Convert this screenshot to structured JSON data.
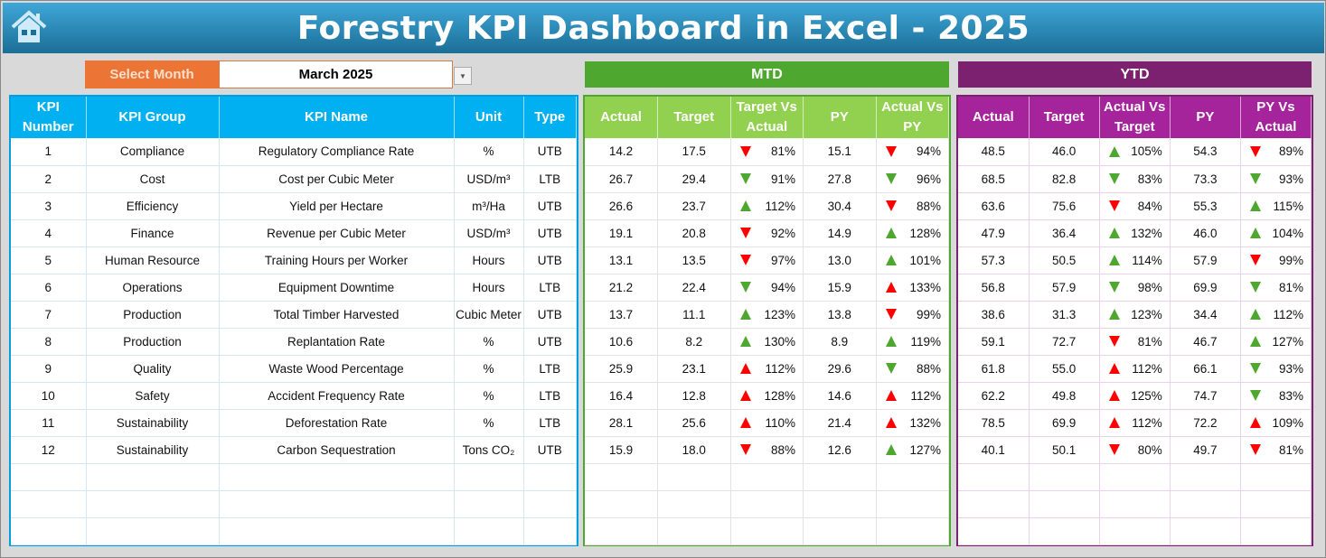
{
  "title": "Forestry KPI Dashboard in Excel - 2025",
  "icons": {
    "home": "home-icon",
    "dropdown": "chevron-down-icon"
  },
  "colors": {
    "kpi_header": "#00b0f0",
    "mtd_band": "#4ea72e",
    "mtd_header": "#92d050",
    "ytd_band": "#7b2170",
    "ytd_header": "#a5249b",
    "red": "#ff0000",
    "green": "#4ea72e",
    "select_label": "#ec7434"
  },
  "select": {
    "label": "Select Month",
    "value": "March 2025"
  },
  "sections": {
    "mtd": "MTD",
    "ytd": "YTD"
  },
  "kpi_headers": [
    "KPI Number",
    "KPI Group",
    "KPI Name",
    "Unit",
    "Type"
  ],
  "mtd_headers": [
    "Actual",
    "Target",
    "Target Vs Actual",
    "PY",
    "Actual Vs PY"
  ],
  "ytd_headers": [
    "Actual",
    "Target",
    "Actual Vs Target",
    "PY",
    "PY Vs Actual"
  ],
  "rows": [
    {
      "num": "1",
      "group": "Compliance",
      "name": "Regulatory Compliance Rate",
      "unit": "%",
      "type": "UTB",
      "mtd": {
        "actual": "14.2",
        "target": "17.5",
        "tva": {
          "v": "81%",
          "dir": "down",
          "color": "red"
        },
        "py": "15.1",
        "avpy": {
          "v": "94%",
          "dir": "down",
          "color": "red"
        }
      },
      "ytd": {
        "actual": "48.5",
        "target": "46.0",
        "avt": {
          "v": "105%",
          "dir": "up",
          "color": "green"
        },
        "py": "54.3",
        "pyva": {
          "v": "89%",
          "dir": "down",
          "color": "red"
        }
      }
    },
    {
      "num": "2",
      "group": "Cost",
      "name": "Cost per Cubic Meter",
      "unit": "USD/m³",
      "type": "LTB",
      "mtd": {
        "actual": "26.7",
        "target": "29.4",
        "tva": {
          "v": "91%",
          "dir": "down",
          "color": "green"
        },
        "py": "27.8",
        "avpy": {
          "v": "96%",
          "dir": "down",
          "color": "green"
        }
      },
      "ytd": {
        "actual": "68.5",
        "target": "82.8",
        "avt": {
          "v": "83%",
          "dir": "down",
          "color": "green"
        },
        "py": "73.3",
        "pyva": {
          "v": "93%",
          "dir": "down",
          "color": "green"
        }
      }
    },
    {
      "num": "3",
      "group": "Efficiency",
      "name": "Yield per Hectare",
      "unit": "m³/Ha",
      "type": "UTB",
      "mtd": {
        "actual": "26.6",
        "target": "23.7",
        "tva": {
          "v": "112%",
          "dir": "up",
          "color": "green"
        },
        "py": "30.4",
        "avpy": {
          "v": "88%",
          "dir": "down",
          "color": "red"
        }
      },
      "ytd": {
        "actual": "63.6",
        "target": "75.6",
        "avt": {
          "v": "84%",
          "dir": "down",
          "color": "red"
        },
        "py": "55.3",
        "pyva": {
          "v": "115%",
          "dir": "up",
          "color": "green"
        }
      }
    },
    {
      "num": "4",
      "group": "Finance",
      "name": "Revenue per Cubic Meter",
      "unit": "USD/m³",
      "type": "UTB",
      "mtd": {
        "actual": "19.1",
        "target": "20.8",
        "tva": {
          "v": "92%",
          "dir": "down",
          "color": "red"
        },
        "py": "14.9",
        "avpy": {
          "v": "128%",
          "dir": "up",
          "color": "green"
        }
      },
      "ytd": {
        "actual": "47.9",
        "target": "36.4",
        "avt": {
          "v": "132%",
          "dir": "up",
          "color": "green"
        },
        "py": "46.0",
        "pyva": {
          "v": "104%",
          "dir": "up",
          "color": "green"
        }
      }
    },
    {
      "num": "5",
      "group": "Human Resource",
      "name": "Training Hours per Worker",
      "unit": "Hours",
      "type": "UTB",
      "mtd": {
        "actual": "13.1",
        "target": "13.5",
        "tva": {
          "v": "97%",
          "dir": "down",
          "color": "red"
        },
        "py": "13.0",
        "avpy": {
          "v": "101%",
          "dir": "up",
          "color": "green"
        }
      },
      "ytd": {
        "actual": "57.3",
        "target": "50.5",
        "avt": {
          "v": "114%",
          "dir": "up",
          "color": "green"
        },
        "py": "57.9",
        "pyva": {
          "v": "99%",
          "dir": "down",
          "color": "red"
        }
      }
    },
    {
      "num": "6",
      "group": "Operations",
      "name": "Equipment Downtime",
      "unit": "Hours",
      "type": "LTB",
      "mtd": {
        "actual": "21.2",
        "target": "22.4",
        "tva": {
          "v": "94%",
          "dir": "down",
          "color": "green"
        },
        "py": "15.9",
        "avpy": {
          "v": "133%",
          "dir": "up",
          "color": "red"
        }
      },
      "ytd": {
        "actual": "56.8",
        "target": "57.9",
        "avt": {
          "v": "98%",
          "dir": "down",
          "color": "green"
        },
        "py": "69.9",
        "pyva": {
          "v": "81%",
          "dir": "down",
          "color": "green"
        }
      }
    },
    {
      "num": "7",
      "group": "Production",
      "name": "Total Timber Harvested",
      "unit": "Cubic Meter",
      "type": "UTB",
      "mtd": {
        "actual": "13.7",
        "target": "11.1",
        "tva": {
          "v": "123%",
          "dir": "up",
          "color": "green"
        },
        "py": "13.8",
        "avpy": {
          "v": "99%",
          "dir": "down",
          "color": "red"
        }
      },
      "ytd": {
        "actual": "38.6",
        "target": "31.3",
        "avt": {
          "v": "123%",
          "dir": "up",
          "color": "green"
        },
        "py": "34.4",
        "pyva": {
          "v": "112%",
          "dir": "up",
          "color": "green"
        }
      }
    },
    {
      "num": "8",
      "group": "Production",
      "name": "Replantation Rate",
      "unit": "%",
      "type": "UTB",
      "mtd": {
        "actual": "10.6",
        "target": "8.2",
        "tva": {
          "v": "130%",
          "dir": "up",
          "color": "green"
        },
        "py": "8.9",
        "avpy": {
          "v": "119%",
          "dir": "up",
          "color": "green"
        }
      },
      "ytd": {
        "actual": "59.1",
        "target": "72.7",
        "avt": {
          "v": "81%",
          "dir": "down",
          "color": "red"
        },
        "py": "46.7",
        "pyva": {
          "v": "127%",
          "dir": "up",
          "color": "green"
        }
      }
    },
    {
      "num": "9",
      "group": "Quality",
      "name": "Waste Wood Percentage",
      "unit": "%",
      "type": "LTB",
      "mtd": {
        "actual": "25.9",
        "target": "23.1",
        "tva": {
          "v": "112%",
          "dir": "up",
          "color": "red"
        },
        "py": "29.6",
        "avpy": {
          "v": "88%",
          "dir": "down",
          "color": "green"
        }
      },
      "ytd": {
        "actual": "61.8",
        "target": "55.0",
        "avt": {
          "v": "112%",
          "dir": "up",
          "color": "red"
        },
        "py": "66.1",
        "pyva": {
          "v": "93%",
          "dir": "down",
          "color": "green"
        }
      }
    },
    {
      "num": "10",
      "group": "Safety",
      "name": "Accident Frequency Rate",
      "unit": "%",
      "type": "LTB",
      "mtd": {
        "actual": "16.4",
        "target": "12.8",
        "tva": {
          "v": "128%",
          "dir": "up",
          "color": "red"
        },
        "py": "14.6",
        "avpy": {
          "v": "112%",
          "dir": "up",
          "color": "red"
        }
      },
      "ytd": {
        "actual": "62.2",
        "target": "49.8",
        "avt": {
          "v": "125%",
          "dir": "up",
          "color": "red"
        },
        "py": "74.7",
        "pyva": {
          "v": "83%",
          "dir": "down",
          "color": "green"
        }
      }
    },
    {
      "num": "11",
      "group": "Sustainability",
      "name": "Deforestation Rate",
      "unit": "%",
      "type": "LTB",
      "mtd": {
        "actual": "28.1",
        "target": "25.6",
        "tva": {
          "v": "110%",
          "dir": "up",
          "color": "red"
        },
        "py": "21.4",
        "avpy": {
          "v": "132%",
          "dir": "up",
          "color": "red"
        }
      },
      "ytd": {
        "actual": "78.5",
        "target": "69.9",
        "avt": {
          "v": "112%",
          "dir": "up",
          "color": "red"
        },
        "py": "72.2",
        "pyva": {
          "v": "109%",
          "dir": "up",
          "color": "red"
        }
      }
    },
    {
      "num": "12",
      "group": "Sustainability",
      "name": "Carbon Sequestration",
      "unit": "Tons CO₂",
      "type": "UTB",
      "mtd": {
        "actual": "15.9",
        "target": "18.0",
        "tva": {
          "v": "88%",
          "dir": "down",
          "color": "red"
        },
        "py": "12.6",
        "avpy": {
          "v": "127%",
          "dir": "up",
          "color": "green"
        }
      },
      "ytd": {
        "actual": "40.1",
        "target": "50.1",
        "avt": {
          "v": "80%",
          "dir": "down",
          "color": "red"
        },
        "py": "49.7",
        "pyva": {
          "v": "81%",
          "dir": "down",
          "color": "red"
        }
      }
    }
  ]
}
